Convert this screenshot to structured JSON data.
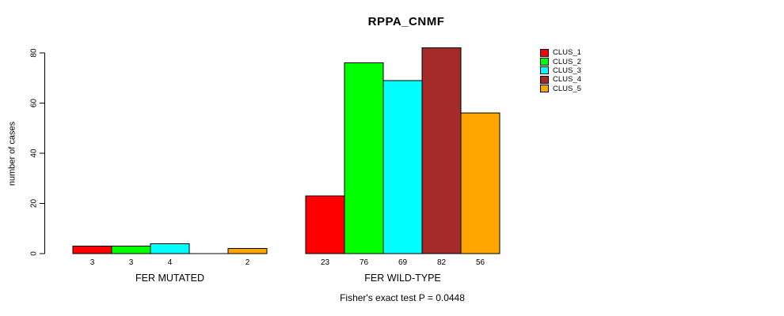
{
  "chart_data": {
    "type": "bar",
    "title": "RPPA_CNMF",
    "ylabel": "number of cases",
    "xlabel": "",
    "ylim": [
      0,
      80
    ],
    "yticks": [
      0,
      20,
      40,
      60,
      80
    ],
    "grid": false,
    "legend_position": "right",
    "annotation": "Fisher's exact test P = 0.0448",
    "series": [
      {
        "name": "CLUS_1",
        "color": "#FF0000",
        "values": [
          3,
          23
        ]
      },
      {
        "name": "CLUS_2",
        "color": "#00FF00",
        "values": [
          3,
          76
        ]
      },
      {
        "name": "CLUS_3",
        "color": "#00FFFF",
        "values": [
          4,
          69
        ]
      },
      {
        "name": "CLUS_4",
        "color": "#A52A2A",
        "values": [
          0,
          82
        ]
      },
      {
        "name": "CLUS_5",
        "color": "#FFA500",
        "values": [
          2,
          56
        ]
      }
    ],
    "groups": [
      {
        "label": "FER MUTATED",
        "values": [
          3,
          3,
          4,
          0,
          2
        ],
        "value_labels": [
          "3",
          "3",
          "4",
          "",
          "2"
        ]
      },
      {
        "label": "FER WILD-TYPE",
        "values": [
          23,
          76,
          69,
          82,
          56
        ],
        "value_labels": [
          "23",
          "76",
          "69",
          "82",
          "56"
        ]
      }
    ]
  },
  "colors": {
    "axis": "#000000",
    "text": "#000000",
    "background": "#ffffff"
  }
}
